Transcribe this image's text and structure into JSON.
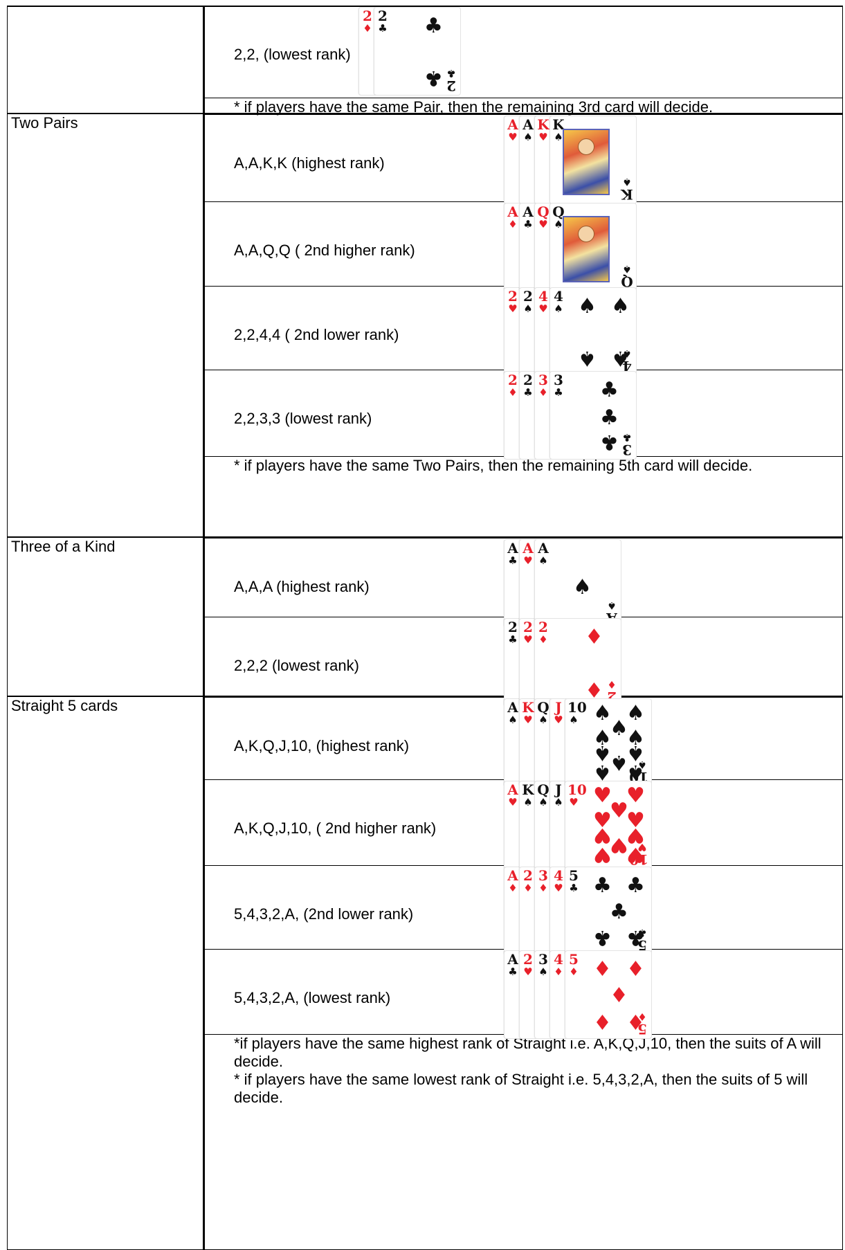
{
  "sections": [
    {
      "category": "",
      "rows": [
        {
          "label": "2,2, (lowest rank)",
          "cards": [
            [
              "2",
              "diamond"
            ],
            [
              "2",
              "club"
            ]
          ]
        }
      ],
      "note": "* if players have the same Pair, then the remaining 3rd card will decide."
    },
    {
      "category": "Two Pairs",
      "rows": [
        {
          "label": "A,A,K,K (highest rank)",
          "cards": [
            [
              "A",
              "heart"
            ],
            [
              "A",
              "spade"
            ],
            [
              "K",
              "heart"
            ],
            [
              "K",
              "spade"
            ]
          ]
        },
        {
          "label": "A,A,Q,Q ( 2nd higher rank)",
          "cards": [
            [
              "A",
              "diamond"
            ],
            [
              "A",
              "club"
            ],
            [
              "Q",
              "heart"
            ],
            [
              "Q",
              "spade"
            ]
          ]
        },
        {
          "label": "2,2,4,4 ( 2nd lower rank)",
          "cards": [
            [
              "2",
              "heart"
            ],
            [
              "2",
              "spade"
            ],
            [
              "4",
              "heart"
            ],
            [
              "4",
              "spade"
            ]
          ]
        },
        {
          "label": "2,2,3,3 (lowest rank)",
          "cards": [
            [
              "2",
              "diamond"
            ],
            [
              "2",
              "club"
            ],
            [
              "3",
              "diamond"
            ],
            [
              "3",
              "club"
            ]
          ]
        }
      ],
      "note": "* if players have the same Two Pairs, then the remaining 5th card will decide."
    },
    {
      "category": "Three of a Kind",
      "rows": [
        {
          "label": "A,A,A (highest rank)",
          "cards": [
            [
              "A",
              "club"
            ],
            [
              "A",
              "heart"
            ],
            [
              "A",
              "spade"
            ]
          ]
        },
        {
          "label": "2,2,2 (lowest rank)",
          "cards": [
            [
              "2",
              "club"
            ],
            [
              "2",
              "heart"
            ],
            [
              "2",
              "diamond"
            ]
          ]
        }
      ],
      "note": ""
    },
    {
      "category": "Straight 5 cards",
      "rows": [
        {
          "label": "A,K,Q,J,10, (highest rank)",
          "cards": [
            [
              "A",
              "spade"
            ],
            [
              "K",
              "heart"
            ],
            [
              "Q",
              "spade"
            ],
            [
              "J",
              "heart"
            ],
            [
              "10",
              "spade"
            ]
          ]
        },
        {
          "label": "A,K,Q,J,10, ( 2nd higher rank)",
          "cards": [
            [
              "A",
              "heart"
            ],
            [
              "K",
              "spade"
            ],
            [
              "Q",
              "spade"
            ],
            [
              "J",
              "spade"
            ],
            [
              "10",
              "heart"
            ]
          ]
        },
        {
          "label": "5,4,3,2,A, (2nd lower rank)",
          "cards": [
            [
              "A",
              "diamond"
            ],
            [
              "2",
              "diamond"
            ],
            [
              "3",
              "diamond"
            ],
            [
              "4",
              "heart"
            ],
            [
              "5",
              "club"
            ]
          ]
        },
        {
          "label": "5,4,3,2,A, (lowest rank)",
          "cards": [
            [
              "A",
              "club"
            ],
            [
              "2",
              "heart"
            ],
            [
              "3",
              "spade"
            ],
            [
              "4",
              "diamond"
            ],
            [
              "5",
              "diamond"
            ]
          ]
        }
      ],
      "note": "*if players have the same highest rank of Straight i.e. A,K,Q,J,10, then the suits of A will decide.\n* if players have the same lowest rank of Straight i.e. 5,4,3,2,A, then the suits of 5 will decide."
    }
  ]
}
